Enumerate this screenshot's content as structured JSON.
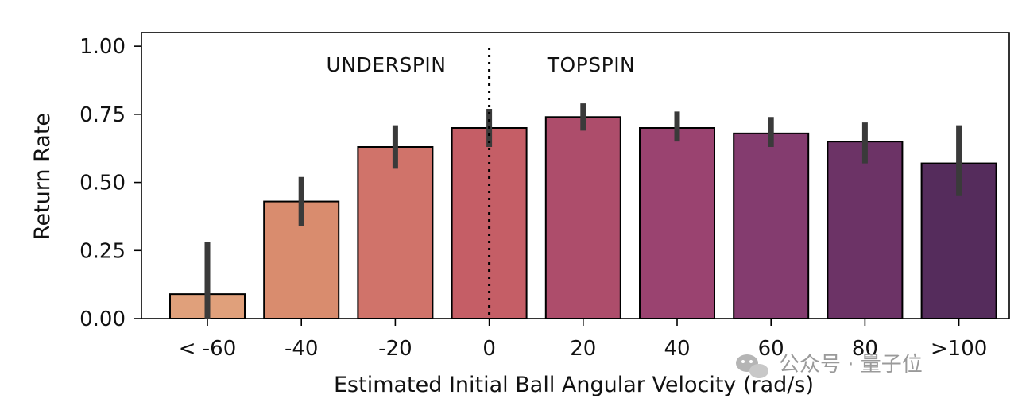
{
  "chart_data": {
    "type": "bar",
    "title": "",
    "xlabel": "Estimated Initial Ball Angular Velocity (rad/s)",
    "ylabel": "Return Rate",
    "categories": [
      "< -60",
      "-40",
      "-20",
      "0",
      "20",
      "40",
      "60",
      "80",
      ">100"
    ],
    "values": [
      0.09,
      0.43,
      0.63,
      0.7,
      0.74,
      0.7,
      0.68,
      0.65,
      0.57
    ],
    "error_low": [
      0.0,
      0.34,
      0.55,
      0.63,
      0.69,
      0.65,
      0.63,
      0.57,
      0.45
    ],
    "error_high": [
      0.28,
      0.52,
      0.71,
      0.77,
      0.79,
      0.76,
      0.74,
      0.72,
      0.71
    ],
    "ylim": [
      0,
      1.05
    ],
    "yticks": [
      "0.00",
      "0.25",
      "0.50",
      "0.75",
      "1.00"
    ],
    "ytick_values": [
      0,
      0.25,
      0.5,
      0.75,
      1.0
    ],
    "colors": [
      "#e0a07b",
      "#d98c6e",
      "#d0736a",
      "#c55e66",
      "#ad4d6b",
      "#9a4370",
      "#843c6f",
      "#6c3366",
      "#552c5c"
    ],
    "divider_at_category": "0",
    "annotations": [
      "UNDERSPIN",
      "TOPSPIN"
    ]
  },
  "watermark": {
    "text": "公众号 · 量子位"
  }
}
